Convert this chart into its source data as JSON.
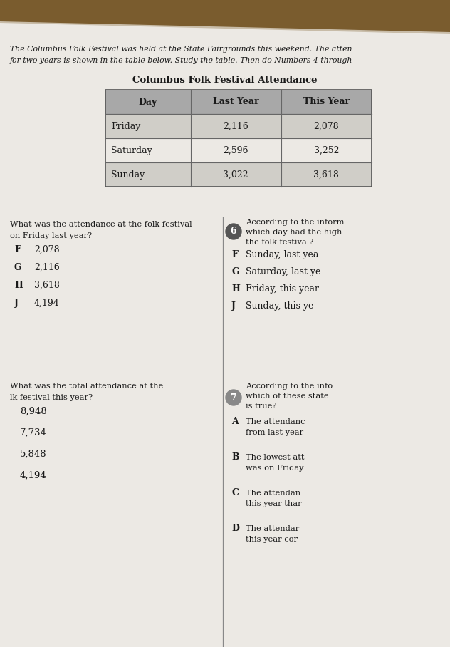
{
  "bg_top_color": "#7a5c2e",
  "bg_bottom_color": "#c8bca8",
  "paper_color": "#ece9e4",
  "intro_text_line1": "The Columbus Folk Festival was held at the State Fairgrounds this weekend. The atten",
  "intro_text_line2": "for two years is shown in the table below. Study the table. Then do Numbers 4 through",
  "table_title": "Columbus Folk Festival Attendance",
  "table_headers": [
    "Day",
    "Last Year",
    "This Year"
  ],
  "table_rows": [
    [
      "Friday",
      "2,116",
      "2,078"
    ],
    [
      "Saturday",
      "2,596",
      "3,252"
    ],
    [
      "Sunday",
      "3,022",
      "3,618"
    ]
  ],
  "header_bg": "#a8a8a8",
  "row_bg_alt": "#d0cec8",
  "row_bg_norm": "#ece9e4",
  "q5_question_line1": "What was the attendance at the folk festival",
  "q5_question_line2": "on Friday last year?",
  "q5_options": [
    [
      "F",
      "2,078"
    ],
    [
      "G",
      "2,116"
    ],
    [
      "H",
      "3,618"
    ],
    [
      "J",
      "4,194"
    ]
  ],
  "q6_question_line1": "According to the inform",
  "q6_question_line2": "which day had the high",
  "q6_question_line3": "the folk festival?",
  "q6_options": [
    [
      "F",
      "Sunday, last yea"
    ],
    [
      "G",
      "Saturday, last ye"
    ],
    [
      "H",
      "Friday, this year"
    ],
    [
      "J",
      "Sunday, this ye"
    ]
  ],
  "q_total_line1": "What was the total attendance at the",
  "q_total_line2": "lk festival this year?",
  "q_total_options": [
    "8,948",
    "7,734",
    "5,848",
    "4,194"
  ],
  "q7_number": "7",
  "q7_question_line1": "According to the info",
  "q7_question_line2": "which of these state",
  "q7_question_line3": "is true?",
  "q7_options": [
    [
      "A",
      "The attendanc",
      "from last year"
    ],
    [
      "B",
      "The lowest att",
      "was on Friday"
    ],
    [
      "C",
      "The attendan",
      "this year thar"
    ],
    [
      "D",
      "The attendar",
      "this year cor"
    ]
  ]
}
